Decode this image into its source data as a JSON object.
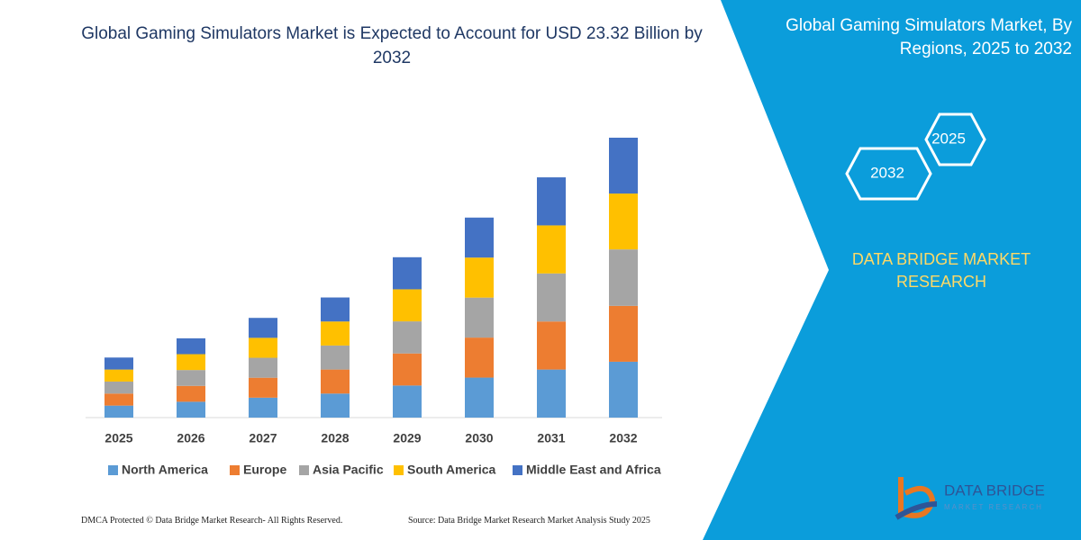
{
  "chart_data": {
    "type": "bar",
    "stacked": true,
    "title": "Global Gaming Simulators Market is Expected to Account for USD 23.32 Billion by 2032",
    "categories": [
      "2025",
      "2026",
      "2027",
      "2028",
      "2029",
      "2030",
      "2031",
      "2032"
    ],
    "series": [
      {
        "name": "North America",
        "color": "#5b9bd5",
        "values": [
          1.0,
          1.32,
          1.66,
          2.0,
          2.67,
          3.33,
          4.0,
          4.65
        ]
      },
      {
        "name": "Europe",
        "color": "#ed7d31",
        "values": [
          1.0,
          1.32,
          1.66,
          2.0,
          2.67,
          3.33,
          4.0,
          4.65
        ]
      },
      {
        "name": "Asia Pacific",
        "color": "#a5a5a5",
        "values": [
          1.0,
          1.32,
          1.66,
          2.0,
          2.67,
          3.33,
          4.0,
          4.7
        ]
      },
      {
        "name": "South America",
        "color": "#ffc000",
        "values": [
          1.0,
          1.32,
          1.66,
          2.0,
          2.67,
          3.33,
          4.0,
          4.65
        ]
      },
      {
        "name": "Middle East and Africa",
        "color": "#4472c4",
        "values": [
          1.0,
          1.32,
          1.66,
          2.0,
          2.67,
          3.33,
          4.0,
          4.65
        ]
      }
    ]
  },
  "panel": {
    "title": "Global Gaming Simulators Market, By Regions, 2025 to 2032",
    "hexagons": [
      "2025",
      "2032"
    ],
    "brand": "DATA BRIDGE MARKET RESEARCH"
  },
  "logo": {
    "name": "DATA BRIDGE",
    "tagline": "MARKET RESEARCH"
  },
  "footer": {
    "left": "DMCA Protected © Data Bridge Market Research-  All Rights Reserved.",
    "right": "Source: Data Bridge Market Research  Market Analysis Study 2025"
  }
}
